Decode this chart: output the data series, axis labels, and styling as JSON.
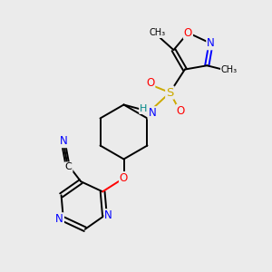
{
  "bg_color": "#ebebeb",
  "atom_colors": {
    "C": "#000000",
    "N": "#0000ff",
    "O": "#ff0000",
    "S": "#ccaa00",
    "H": "#008888"
  },
  "figsize": [
    3.0,
    3.0
  ],
  "dpi": 100,
  "bond_lw": 1.4,
  "font_size": 8.5
}
